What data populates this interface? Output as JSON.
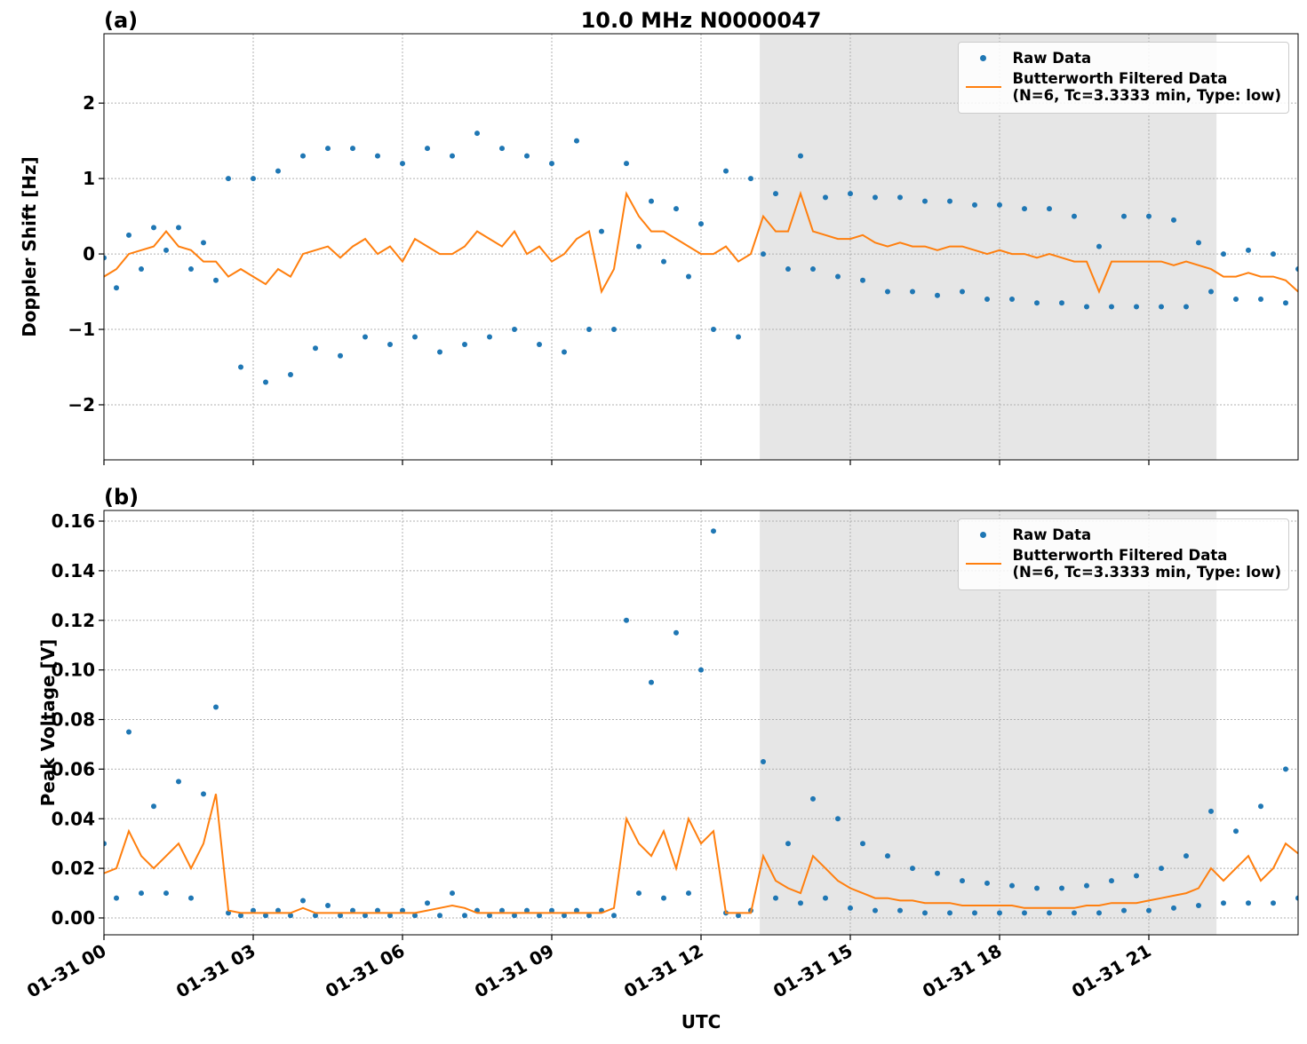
{
  "chart_data": [
    {
      "type": "scatter-line",
      "panel_label": "(a)",
      "title": "10.0 MHz N0000047",
      "y_label": "Doppler Shift [Hz]",
      "x": [
        0,
        0.25,
        0.5,
        0.75,
        1,
        1.25,
        1.5,
        1.75,
        2,
        2.25,
        2.5,
        2.75,
        3,
        3.25,
        3.5,
        3.75,
        4,
        4.25,
        4.5,
        4.75,
        5,
        5.25,
        5.5,
        5.75,
        6,
        6.25,
        6.5,
        6.75,
        7,
        7.25,
        7.5,
        7.75,
        8,
        8.25,
        8.5,
        8.75,
        9,
        9.25,
        9.5,
        9.75,
        10,
        10.25,
        10.5,
        10.75,
        11,
        11.25,
        11.5,
        11.75,
        12,
        12.25,
        12.5,
        12.75,
        13,
        13.25,
        13.5,
        13.75,
        14,
        14.25,
        14.5,
        14.75,
        15,
        15.25,
        15.5,
        15.75,
        16,
        16.25,
        16.5,
        16.75,
        17,
        17.25,
        17.5,
        17.75,
        18,
        18.25,
        18.5,
        18.75,
        19,
        19.25,
        19.5,
        19.75,
        20,
        20.25,
        20.5,
        20.75,
        21,
        21.25,
        21.5,
        21.75,
        22,
        22.25,
        22.5,
        22.75,
        23,
        23.25,
        23.5,
        23.75,
        24
      ],
      "series": [
        {
          "name": "Raw Data",
          "color": "#1f77b4",
          "values": [
            -0.05,
            -0.45,
            0.25,
            -0.2,
            0.35,
            0.05,
            0.35,
            -0.2,
            0.15,
            -0.35,
            1.0,
            -1.5,
            1.0,
            -1.7,
            1.1,
            -1.6,
            1.3,
            -1.25,
            1.4,
            -1.35,
            1.4,
            -1.1,
            1.3,
            -1.2,
            1.2,
            -1.1,
            1.4,
            -1.3,
            1.3,
            -1.2,
            1.6,
            -1.1,
            1.4,
            -1.0,
            1.3,
            -1.2,
            1.2,
            -1.3,
            1.5,
            -1.0,
            0.3,
            -1.0,
            1.2,
            0.1,
            0.7,
            -0.1,
            0.6,
            -0.3,
            0.4,
            -1.0,
            1.1,
            -1.1,
            1.0,
            0.0,
            0.8,
            -0.2,
            1.3,
            -0.2,
            0.75,
            -0.3,
            0.8,
            -0.35,
            0.75,
            -0.5,
            0.75,
            -0.5,
            0.7,
            -0.55,
            0.7,
            -0.5,
            0.65,
            -0.6,
            0.65,
            -0.6,
            0.6,
            -0.65,
            0.6,
            -0.65,
            0.5,
            -0.7,
            0.1,
            -0.7,
            0.5,
            -0.7,
            0.5,
            -0.7,
            0.45,
            -0.7,
            0.15,
            -0.5,
            0.0,
            -0.6,
            0.05,
            -0.6,
            0.0,
            -0.65,
            -0.2
          ]
        },
        {
          "name": "Butterworth Filtered Data\n(N=6, Tc=3.3333 min, Type: low)",
          "color": "#ff7f0e",
          "values": [
            -0.3,
            -0.2,
            0.0,
            0.05,
            0.1,
            0.3,
            0.1,
            0.05,
            -0.1,
            -0.1,
            -0.3,
            -0.2,
            -0.3,
            -0.4,
            -0.2,
            -0.3,
            0.0,
            0.05,
            0.1,
            -0.05,
            0.1,
            0.2,
            0.0,
            0.1,
            -0.1,
            0.2,
            0.1,
            0.0,
            0.0,
            0.1,
            0.3,
            0.2,
            0.1,
            0.3,
            0.0,
            0.1,
            -0.1,
            0.0,
            0.2,
            0.3,
            -0.5,
            -0.2,
            0.8,
            0.5,
            0.3,
            0.3,
            0.2,
            0.1,
            0.0,
            0.0,
            0.1,
            -0.1,
            0.0,
            0.5,
            0.3,
            0.3,
            0.8,
            0.3,
            0.25,
            0.2,
            0.2,
            0.25,
            0.15,
            0.1,
            0.15,
            0.1,
            0.1,
            0.05,
            0.1,
            0.1,
            0.05,
            0.0,
            0.05,
            0.0,
            0.0,
            -0.05,
            0.0,
            -0.05,
            -0.1,
            -0.1,
            -0.5,
            -0.1,
            -0.1,
            -0.1,
            -0.1,
            -0.1,
            -0.15,
            -0.1,
            -0.15,
            -0.2,
            -0.3,
            -0.3,
            -0.25,
            -0.3,
            -0.3,
            -0.35,
            -0.5
          ]
        }
      ],
      "xlim": [
        0,
        24
      ],
      "xticks": [
        0,
        3,
        6,
        9,
        12,
        15,
        18,
        21
      ],
      "ylim": [
        -2.73,
        2.92
      ],
      "yticks": [
        {
          "value": -2,
          "label": "−2"
        },
        {
          "value": -1,
          "label": "−1"
        },
        0,
        1,
        2
      ],
      "grid": true,
      "shaded_span": [
        13.18,
        22.36
      ],
      "legend": "upper right"
    },
    {
      "type": "scatter-line",
      "panel_label": "(b)",
      "y_label": "Peak Voltage [V]",
      "x_label": "UTC",
      "x": [
        0,
        0.25,
        0.5,
        0.75,
        1,
        1.25,
        1.5,
        1.75,
        2,
        2.25,
        2.5,
        2.75,
        3,
        3.25,
        3.5,
        3.75,
        4,
        4.25,
        4.5,
        4.75,
        5,
        5.25,
        5.5,
        5.75,
        6,
        6.25,
        6.5,
        6.75,
        7,
        7.25,
        7.5,
        7.75,
        8,
        8.25,
        8.5,
        8.75,
        9,
        9.25,
        9.5,
        9.75,
        10,
        10.25,
        10.5,
        10.75,
        11,
        11.25,
        11.5,
        11.75,
        12,
        12.25,
        12.5,
        12.75,
        13,
        13.25,
        13.5,
        13.75,
        14,
        14.25,
        14.5,
        14.75,
        15,
        15.25,
        15.5,
        15.75,
        16,
        16.25,
        16.5,
        16.75,
        17,
        17.25,
        17.5,
        17.75,
        18,
        18.25,
        18.5,
        18.75,
        19,
        19.25,
        19.5,
        19.75,
        20,
        20.25,
        20.5,
        20.75,
        21,
        21.25,
        21.5,
        21.75,
        22,
        22.25,
        22.5,
        22.75,
        23,
        23.25,
        23.5,
        23.75,
        24
      ],
      "series": [
        {
          "name": "Raw Data",
          "color": "#1f77b4",
          "values": [
            0.03,
            0.008,
            0.075,
            0.01,
            0.045,
            0.01,
            0.055,
            0.008,
            0.05,
            0.085,
            0.002,
            0.001,
            0.003,
            0.001,
            0.003,
            0.001,
            0.007,
            0.001,
            0.005,
            0.001,
            0.003,
            0.001,
            0.003,
            0.001,
            0.003,
            0.001,
            0.006,
            0.001,
            0.01,
            0.001,
            0.003,
            0.001,
            0.003,
            0.001,
            0.003,
            0.001,
            0.003,
            0.001,
            0.003,
            0.001,
            0.003,
            0.001,
            0.12,
            0.01,
            0.095,
            0.008,
            0.115,
            0.01,
            0.1,
            0.156,
            0.002,
            0.001,
            0.003,
            0.063,
            0.008,
            0.03,
            0.006,
            0.048,
            0.008,
            0.04,
            0.004,
            0.03,
            0.003,
            0.025,
            0.003,
            0.02,
            0.002,
            0.018,
            0.002,
            0.015,
            0.002,
            0.014,
            0.002,
            0.013,
            0.002,
            0.012,
            0.002,
            0.012,
            0.002,
            0.013,
            0.002,
            0.015,
            0.003,
            0.017,
            0.003,
            0.02,
            0.004,
            0.025,
            0.005,
            0.043,
            0.006,
            0.035,
            0.006,
            0.045,
            0.006,
            0.06,
            0.008
          ]
        },
        {
          "name": "Butterworth Filtered Data\n(N=6, Tc=3.3333 min, Type: low)",
          "color": "#ff7f0e",
          "values": [
            0.018,
            0.02,
            0.035,
            0.025,
            0.02,
            0.025,
            0.03,
            0.02,
            0.03,
            0.05,
            0.003,
            0.002,
            0.002,
            0.002,
            0.002,
            0.002,
            0.004,
            0.002,
            0.002,
            0.002,
            0.002,
            0.002,
            0.002,
            0.002,
            0.002,
            0.002,
            0.003,
            0.004,
            0.005,
            0.004,
            0.002,
            0.002,
            0.002,
            0.002,
            0.002,
            0.002,
            0.002,
            0.002,
            0.002,
            0.002,
            0.002,
            0.004,
            0.04,
            0.03,
            0.025,
            0.035,
            0.02,
            0.04,
            0.03,
            0.035,
            0.002,
            0.002,
            0.002,
            0.025,
            0.015,
            0.012,
            0.01,
            0.025,
            0.02,
            0.015,
            0.012,
            0.01,
            0.008,
            0.008,
            0.007,
            0.007,
            0.006,
            0.006,
            0.006,
            0.005,
            0.005,
            0.005,
            0.005,
            0.005,
            0.004,
            0.004,
            0.004,
            0.004,
            0.004,
            0.005,
            0.005,
            0.006,
            0.006,
            0.006,
            0.007,
            0.008,
            0.009,
            0.01,
            0.012,
            0.02,
            0.015,
            0.02,
            0.025,
            0.015,
            0.02,
            0.03,
            0.026
          ]
        }
      ],
      "xlim": [
        0,
        24
      ],
      "xticks": [
        {
          "value": 0,
          "label": "01-31 00"
        },
        {
          "value": 3,
          "label": "01-31 03"
        },
        {
          "value": 6,
          "label": "01-31 06"
        },
        {
          "value": 9,
          "label": "01-31 09"
        },
        {
          "value": 12,
          "label": "01-31 12"
        },
        {
          "value": 15,
          "label": "01-31 15"
        },
        {
          "value": 18,
          "label": "01-31 18"
        },
        {
          "value": 21,
          "label": "01-31 21"
        }
      ],
      "ylim": [
        -0.0068,
        0.1643
      ],
      "yticks": [
        {
          "value": 0,
          "label": "0.00"
        },
        {
          "value": 0.02,
          "label": "0.02"
        },
        {
          "value": 0.04,
          "label": "0.04"
        },
        {
          "value": 0.06,
          "label": "0.06"
        },
        {
          "value": 0.08,
          "label": "0.08"
        },
        {
          "value": 0.1,
          "label": "0.10"
        },
        {
          "value": 0.12,
          "label": "0.12"
        },
        {
          "value": 0.14,
          "label": "0.14"
        },
        {
          "value": 0.16,
          "label": "0.16"
        }
      ],
      "grid": true,
      "shaded_span": [
        13.18,
        22.36
      ],
      "legend": "upper right"
    }
  ]
}
